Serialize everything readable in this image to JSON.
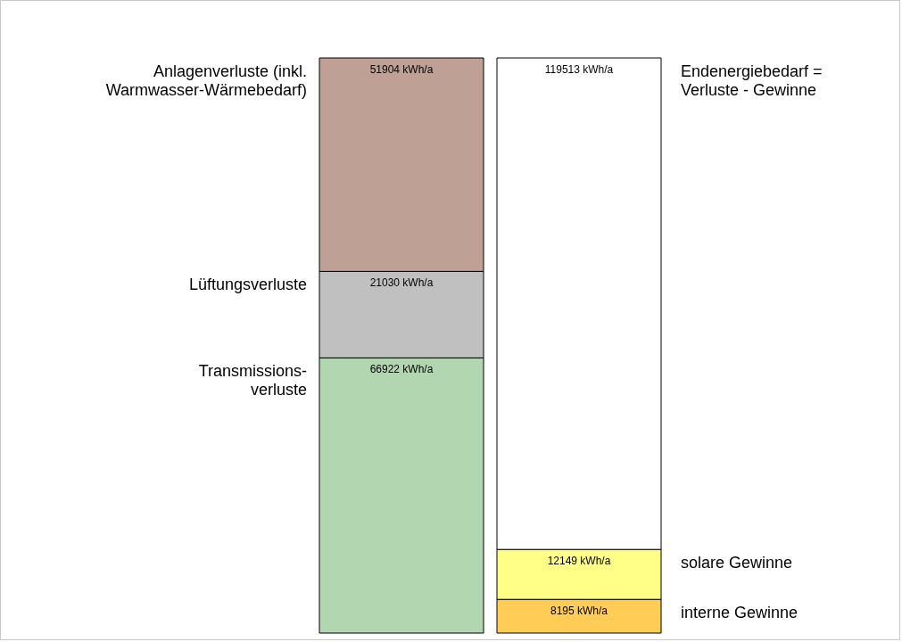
{
  "chart_data": {
    "type": "bar",
    "stacked": true,
    "legend": false,
    "categories": [
      null,
      null
    ],
    "series": [
      {
        "name": "Transmissions-\nverluste",
        "color": "#b2d6b0",
        "values": [
          66922,
          null
        ],
        "value_labels": [
          "66922 kWh/a",
          null
        ]
      },
      {
        "name": "Lüftungsverluste",
        "color": "#c0c0c0",
        "values": [
          21030,
          null
        ],
        "value_labels": [
          "21030 kWh/a",
          null
        ]
      },
      {
        "name": "Anlagenverluste (inkl.\nWarmwasser-Wärmebedarf)",
        "color": "#bfa095",
        "values": [
          51904,
          null
        ],
        "value_labels": [
          "51904 kWh/a",
          null
        ]
      },
      {
        "name": "interne Gewinne",
        "color": "#ffcc55",
        "values": [
          null,
          8195
        ],
        "value_labels": [
          null,
          "8195 kWh/a"
        ]
      },
      {
        "name": "solare Gewinne",
        "color": "#ffff88",
        "values": [
          null,
          12149
        ],
        "value_labels": [
          null,
          "12149 kWh/a"
        ]
      },
      {
        "name": "Endenergiebedarf =\nVerluste - Gewinne",
        "color": "#ffffff",
        "values": [
          null,
          119513
        ],
        "value_labels": [
          null,
          "119513 kWh/a"
        ]
      }
    ]
  }
}
